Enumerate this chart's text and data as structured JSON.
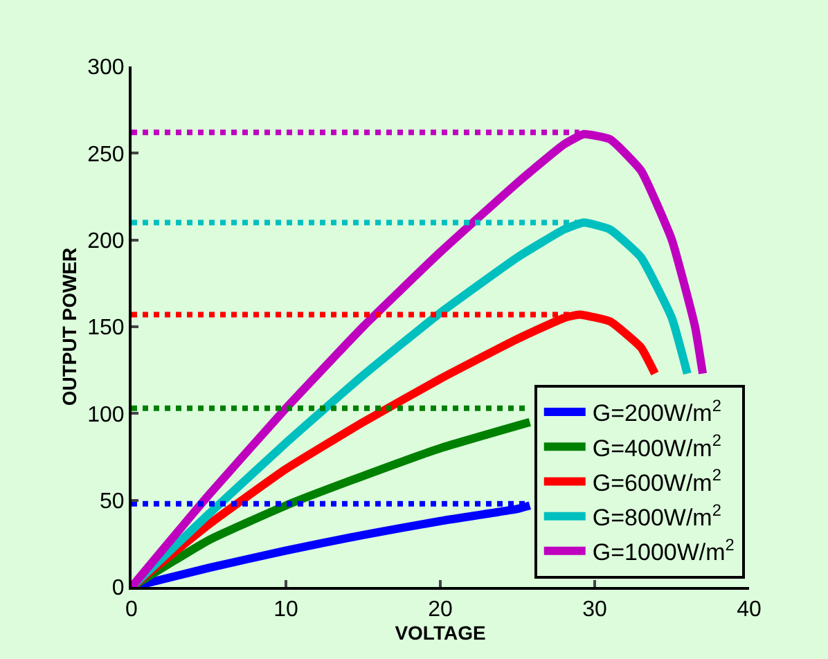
{
  "chart_data": {
    "type": "line",
    "xlabel": "VOLTAGE",
    "ylabel": "OUTPUT POWER",
    "xlim": [
      0,
      40
    ],
    "xticks": [
      0,
      10,
      20,
      30,
      40
    ],
    "ylim": [
      0,
      300
    ],
    "yticks": [
      0,
      50,
      100,
      150,
      200,
      250,
      300
    ],
    "grid": false,
    "legend": "bottom right",
    "marker": "none",
    "line_style": "solid",
    "series": [
      {
        "name": "G=200W/m$^{2}$",
        "color": "#0000ff",
        "x": [
          0,
          5,
          10,
          15,
          20,
          25,
          25.8
        ],
        "values": [
          0,
          11,
          21,
          30,
          38,
          45,
          47
        ]
      },
      {
        "name": "G=400W/m$^{2}$",
        "color": "#008000",
        "x": [
          0,
          5,
          10,
          15,
          20,
          25,
          25.8
        ],
        "values": [
          0,
          27,
          47,
          64,
          80,
          93,
          95
        ]
      },
      {
        "name": "G=600W/m$^{2}$",
        "color": "#ff0000",
        "x": [
          0,
          5,
          10,
          15,
          20,
          25,
          28,
          29,
          31,
          33,
          33.9
        ],
        "values": [
          0,
          36,
          68,
          95,
          120,
          143,
          155,
          157,
          153,
          138,
          123
        ]
      },
      {
        "name": "G=800W/m$^{2}$",
        "color": "#00bfbf",
        "x": [
          0,
          5,
          10,
          15,
          20,
          25,
          28,
          29.3,
          31,
          33,
          35,
          36
        ],
        "values": [
          0,
          42,
          83,
          122,
          158,
          190,
          206,
          210,
          206,
          190,
          155,
          123
        ]
      },
      {
        "name": "G=1000W/m$^{2}$",
        "color": "#bf00bf",
        "x": [
          0,
          5,
          10,
          15,
          20,
          25,
          28,
          29.3,
          31,
          33,
          35,
          36.5,
          37
        ],
        "values": [
          0,
          53,
          103,
          150,
          193,
          233,
          255,
          261,
          258,
          240,
          200,
          150,
          123
        ]
      },
      {
        "color": "#0000ff",
        "line_style": "dotted",
        "x": [
          0,
          25.5
        ],
        "values": [
          48,
          48
        ]
      },
      {
        "color": "#008000",
        "line_style": "dotted",
        "x": [
          0,
          25.5
        ],
        "values": [
          103,
          103
        ]
      },
      {
        "color": "#ff0000",
        "line_style": "dotted",
        "x": [
          0,
          29
        ],
        "values": [
          157,
          157
        ]
      },
      {
        "color": "#00bfbf",
        "line_style": "dotted",
        "x": [
          0,
          29
        ],
        "values": [
          210,
          210
        ]
      },
      {
        "color": "#bf00bf",
        "line_style": "dotted",
        "x": [
          0,
          29
        ],
        "values": [
          262,
          262
        ]
      }
    ]
  }
}
